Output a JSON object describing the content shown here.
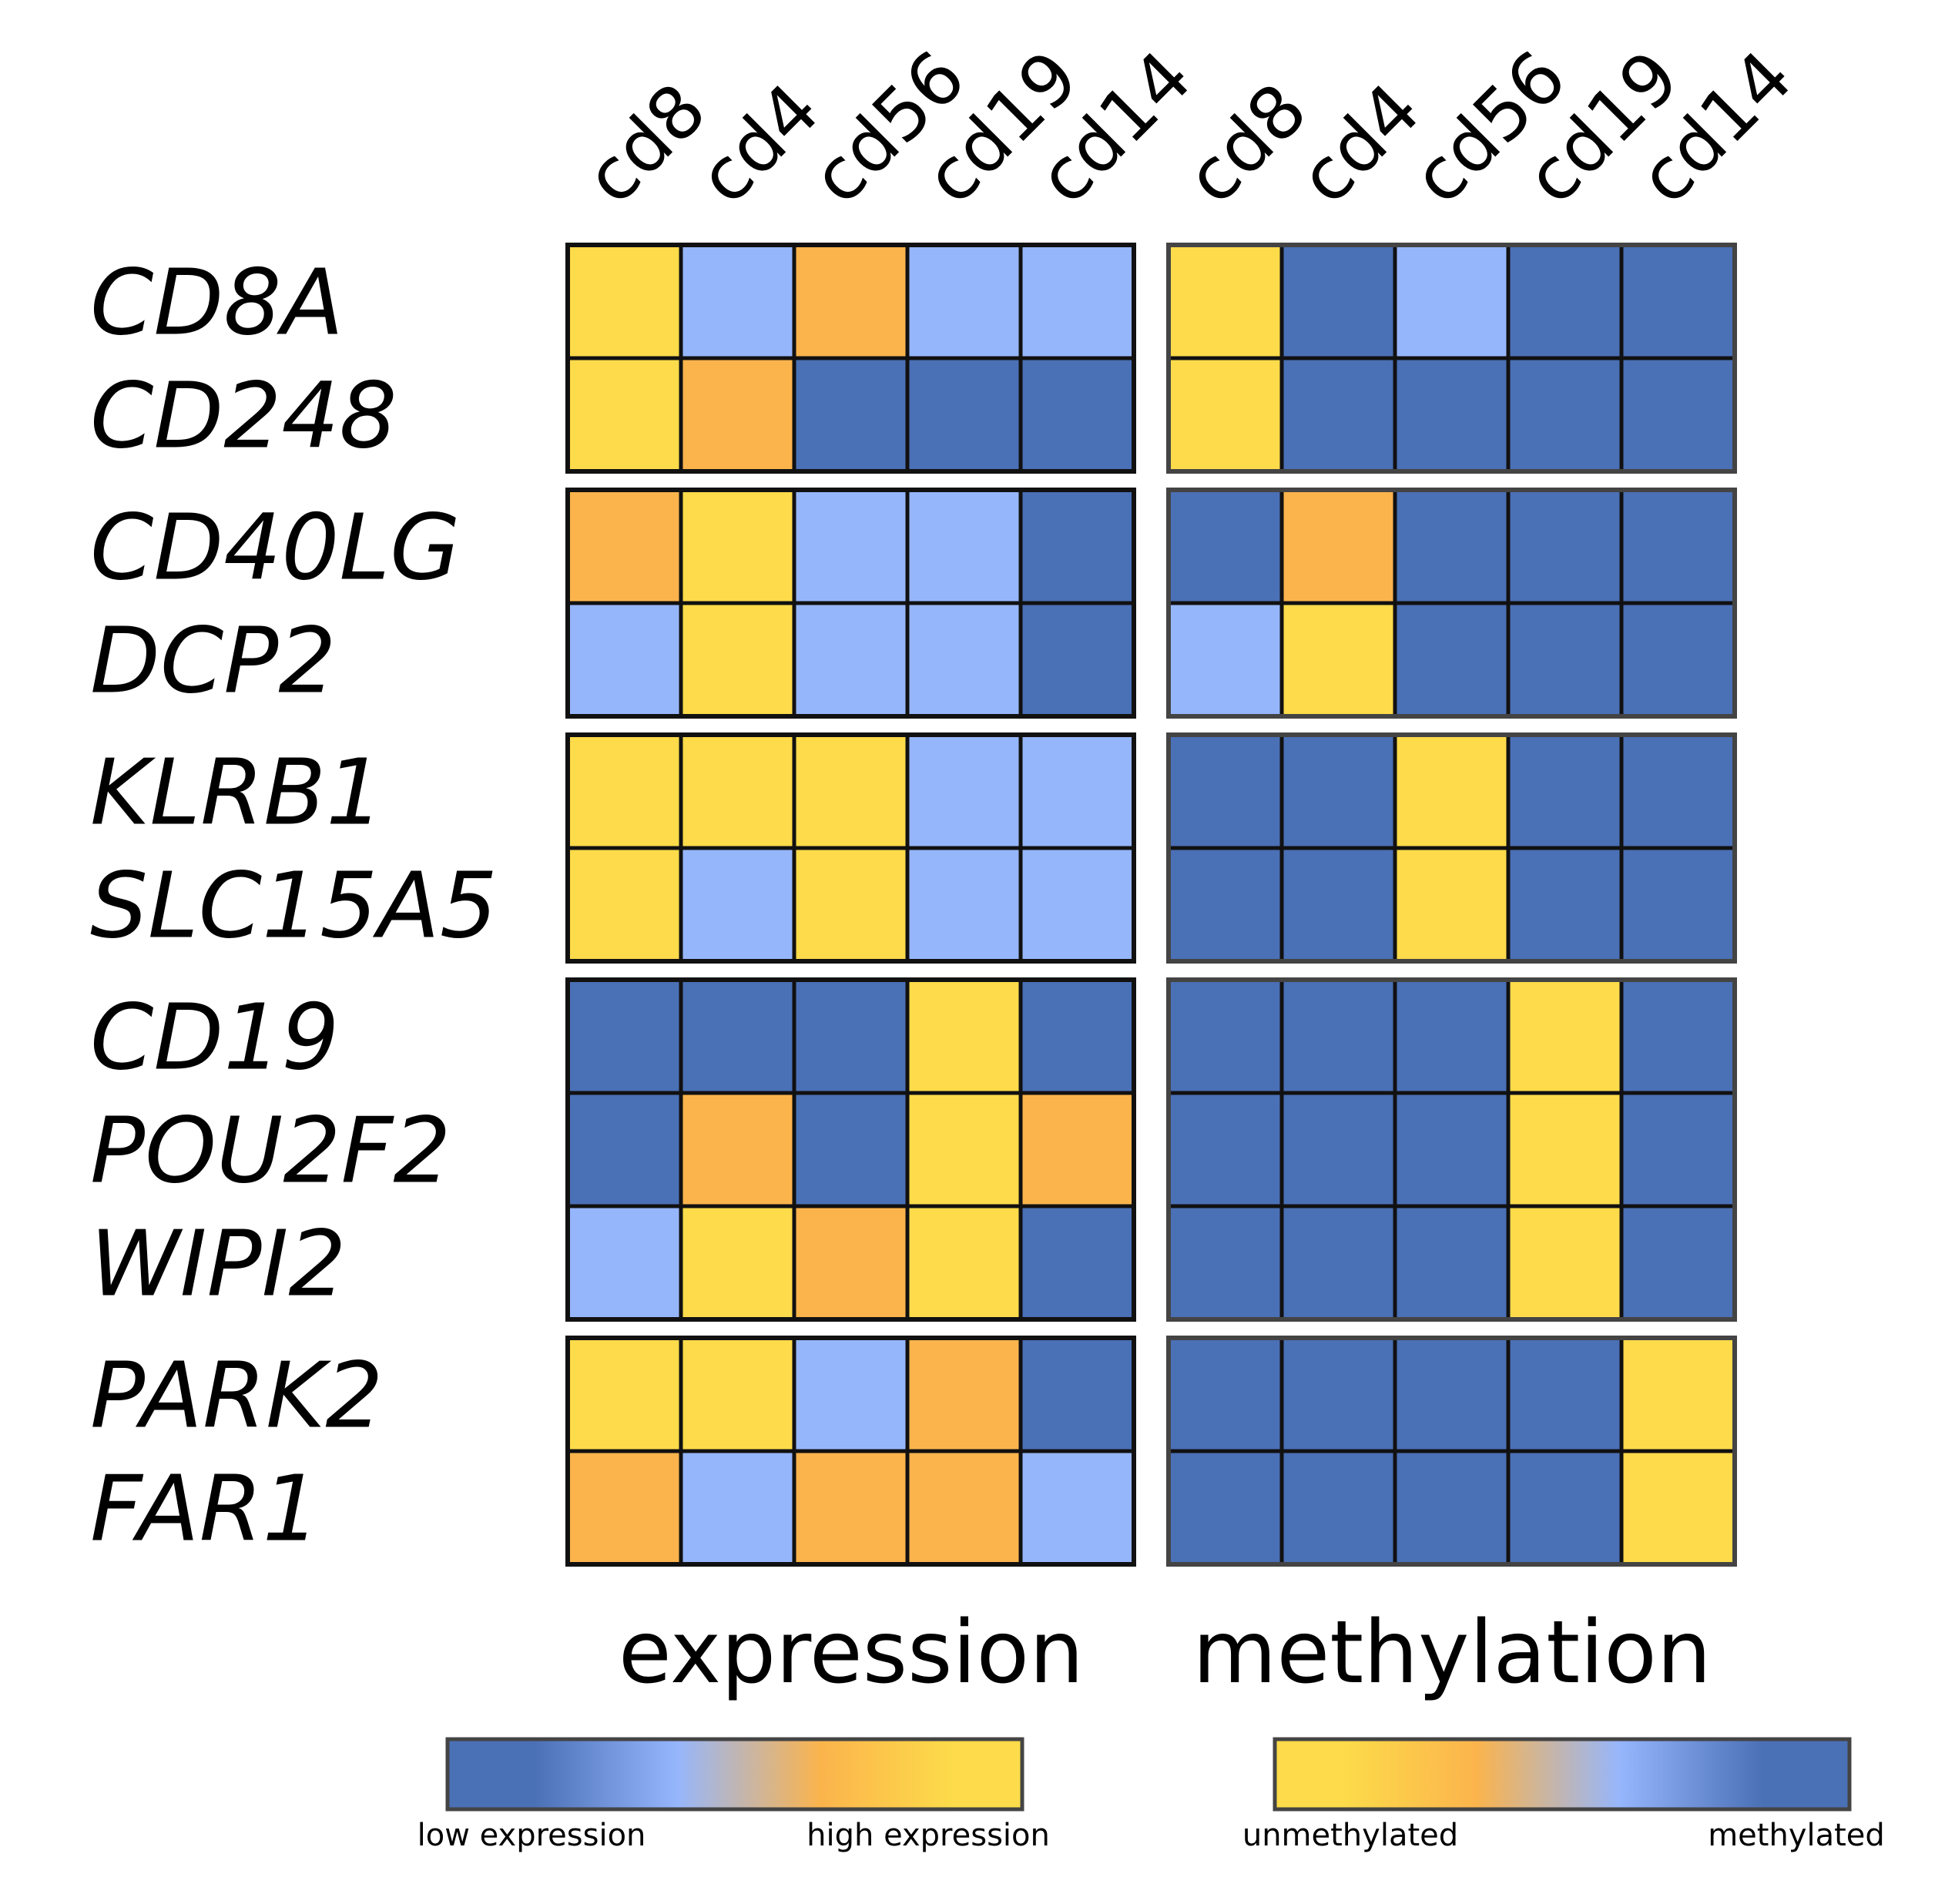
{
  "chart_data": {
    "type": "heatmap",
    "genes": [
      "CD8A",
      "CD248",
      "CD40LG",
      "DCP2",
      "KLRB1",
      "SLC15A5",
      "CD19",
      "POU2F2",
      "WIPI2",
      "PARK2",
      "FAR1"
    ],
    "gene_groups": [
      [
        "CD8A",
        "CD248"
      ],
      [
        "CD40LG",
        "DCP2"
      ],
      [
        "KLRB1",
        "SLC15A5"
      ],
      [
        "CD19",
        "POU2F2",
        "WIPI2"
      ],
      [
        "PARK2",
        "FAR1"
      ]
    ],
    "columns": [
      "cd8",
      "cd4",
      "cd56",
      "cd19",
      "cd14"
    ],
    "panels": [
      {
        "title": "expression",
        "colorbar": {
          "low_label": "low expression",
          "high_label": "high expression",
          "stops": [
            "#4a70b6",
            "#96b6fc",
            "#fbb44c",
            "#fddb4a"
          ]
        },
        "levels": [
          [
            3,
            1,
            2,
            1,
            1
          ],
          [
            3,
            2,
            0,
            0,
            0
          ],
          [
            2,
            3,
            1,
            1,
            0
          ],
          [
            1,
            3,
            1,
            1,
            0
          ],
          [
            3,
            3,
            3,
            1,
            1
          ],
          [
            3,
            1,
            3,
            1,
            1
          ],
          [
            0,
            0,
            0,
            3,
            0
          ],
          [
            0,
            2,
            0,
            3,
            2
          ],
          [
            1,
            3,
            2,
            3,
            0
          ],
          [
            3,
            3,
            1,
            2,
            0
          ],
          [
            2,
            1,
            2,
            2,
            1
          ]
        ]
      },
      {
        "title": "methylation",
        "colorbar": {
          "low_label": "unmethylated",
          "high_label": "methylated",
          "stops": [
            "#fddb4a",
            "#fbb44c",
            "#96b6fc",
            "#4a70b6"
          ]
        },
        "levels": [
          [
            3,
            0,
            1,
            0,
            0
          ],
          [
            3,
            0,
            0,
            0,
            0
          ],
          [
            0,
            2,
            0,
            0,
            0
          ],
          [
            1,
            3,
            0,
            0,
            0
          ],
          [
            0,
            0,
            3,
            0,
            0
          ],
          [
            0,
            0,
            3,
            0,
            0
          ],
          [
            0,
            0,
            0,
            3,
            0
          ],
          [
            0,
            0,
            0,
            3,
            0
          ],
          [
            0,
            0,
            0,
            3,
            0
          ],
          [
            0,
            0,
            0,
            0,
            3
          ],
          [
            0,
            0,
            0,
            0,
            3
          ]
        ]
      }
    ],
    "level_colors": [
      "#4a70b6",
      "#96b6fc",
      "#fbb44c",
      "#fddb4a"
    ]
  }
}
